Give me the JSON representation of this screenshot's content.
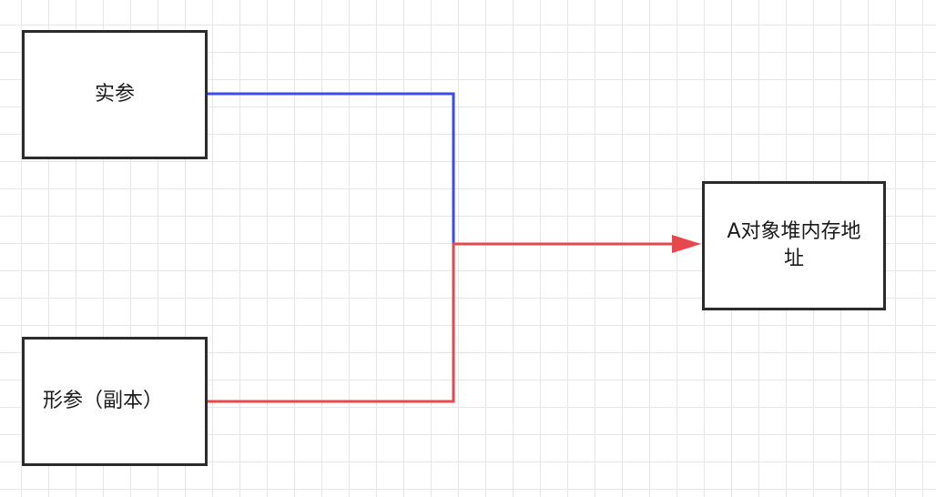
{
  "diagram": {
    "nodes": [
      {
        "id": "actual_param",
        "label": "实参"
      },
      {
        "id": "formal_param",
        "label": "形参（副本）"
      },
      {
        "id": "heap_address",
        "label": "A对象堆内存地址"
      }
    ],
    "edges": [
      {
        "from": "actual_param",
        "to": "heap_address",
        "color": "#3a4bf2",
        "arrow": false
      },
      {
        "from": "formal_param",
        "to": "heap_address",
        "color": "#e5484d",
        "arrow": true
      }
    ],
    "colors": {
      "grid": "#e6e6e6",
      "node_border": "#2b2b2b",
      "actual_line": "#3a4bf2",
      "formal_line": "#e5484d"
    }
  }
}
